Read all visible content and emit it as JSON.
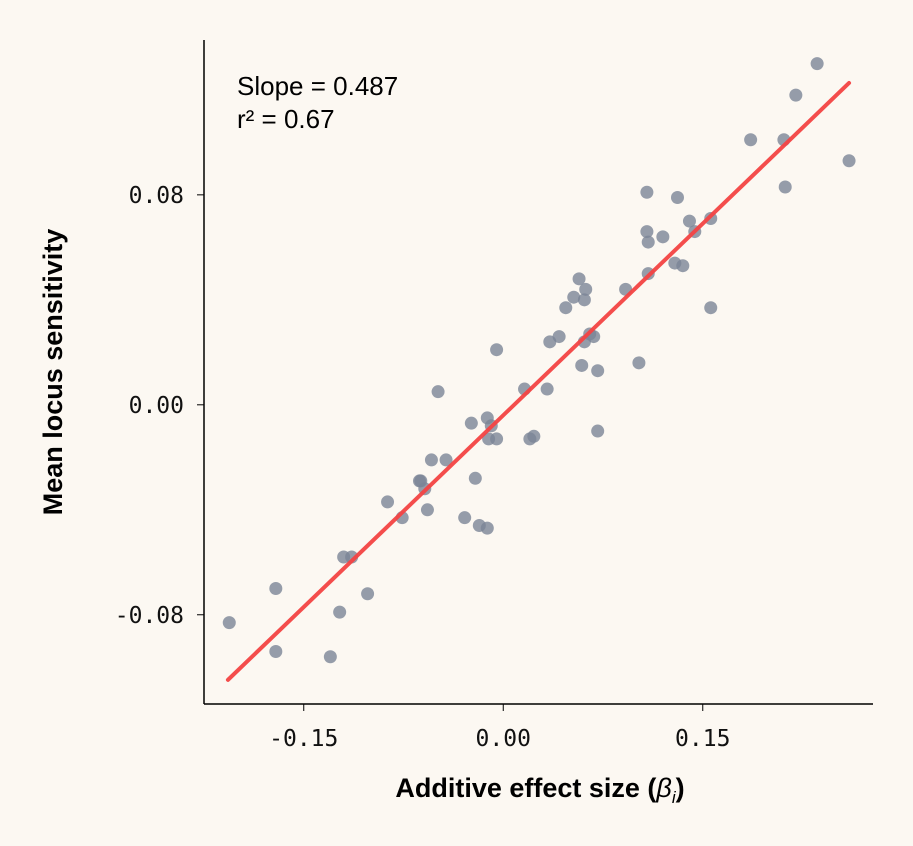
{
  "chart_data": {
    "type": "scatter",
    "xlabel": "Additive effect size (",
    "xlabel_symbol": "β",
    "xlabel_subscript": "i",
    "xlabel_close": ")",
    "ylabel": "Mean locus sensitivity",
    "xlim": [
      -0.225,
      0.278
    ],
    "ylim": [
      -0.114,
      0.139
    ],
    "xticks": [
      -0.15,
      0.0,
      0.15
    ],
    "xtick_labels": [
      "-0.15",
      "0.00",
      "0.15"
    ],
    "yticks": [
      -0.08,
      0.0,
      0.08
    ],
    "ytick_labels": [
      "-0.08",
      "0.00",
      "0.08"
    ],
    "grid": false,
    "annotations": [
      "Slope = 0.487",
      "r² = 0.67"
    ],
    "fit_line": {
      "slope": 0.487,
      "intercept": -0.004,
      "x_range": [
        -0.207,
        0.26
      ],
      "color": "#f44444"
    },
    "point_color": "#7a8596",
    "background": "#fcf8f2",
    "points": [
      [
        -0.206,
        -0.083
      ],
      [
        -0.171,
        -0.07
      ],
      [
        -0.171,
        -0.094
      ],
      [
        -0.13,
        -0.096
      ],
      [
        -0.123,
        -0.079
      ],
      [
        -0.12,
        -0.058
      ],
      [
        -0.114,
        -0.058
      ],
      [
        -0.102,
        -0.072
      ],
      [
        -0.087,
        -0.037
      ],
      [
        -0.076,
        -0.043
      ],
      [
        -0.063,
        -0.029
      ],
      [
        -0.062,
        -0.029
      ],
      [
        -0.059,
        -0.032
      ],
      [
        -0.057,
        -0.04
      ],
      [
        -0.054,
        -0.021
      ],
      [
        -0.043,
        -0.021
      ],
      [
        -0.049,
        0.005
      ],
      [
        -0.029,
        -0.043
      ],
      [
        -0.024,
        -0.007
      ],
      [
        -0.021,
        -0.028
      ],
      [
        -0.018,
        -0.046
      ],
      [
        -0.012,
        -0.047
      ],
      [
        -0.012,
        -0.005
      ],
      [
        -0.011,
        -0.013
      ],
      [
        -0.009,
        -0.008
      ],
      [
        -0.005,
        -0.013
      ],
      [
        -0.005,
        0.021
      ],
      [
        0.016,
        0.006
      ],
      [
        0.02,
        -0.013
      ],
      [
        0.023,
        -0.012
      ],
      [
        0.033,
        0.006
      ],
      [
        0.035,
        0.024
      ],
      [
        0.042,
        0.026
      ],
      [
        0.047,
        0.037
      ],
      [
        0.053,
        0.041
      ],
      [
        0.057,
        0.048
      ],
      [
        0.062,
        0.044
      ],
      [
        0.061,
        0.04
      ],
      [
        0.059,
        0.015
      ],
      [
        0.061,
        0.024
      ],
      [
        0.065,
        0.027
      ],
      [
        0.068,
        0.026
      ],
      [
        0.071,
        0.013
      ],
      [
        0.071,
        -0.01
      ],
      [
        0.092,
        0.044
      ],
      [
        0.102,
        0.016
      ],
      [
        0.109,
        0.05
      ],
      [
        0.108,
        0.081
      ],
      [
        0.108,
        0.066
      ],
      [
        0.109,
        0.062
      ],
      [
        0.12,
        0.064
      ],
      [
        0.129,
        0.054
      ],
      [
        0.131,
        0.079
      ],
      [
        0.135,
        0.053
      ],
      [
        0.14,
        0.07
      ],
      [
        0.144,
        0.066
      ],
      [
        0.156,
        0.071
      ],
      [
        0.156,
        0.037
      ],
      [
        0.186,
        0.101
      ],
      [
        0.211,
        0.101
      ],
      [
        0.212,
        0.083
      ],
      [
        0.22,
        0.118
      ],
      [
        0.236,
        0.13
      ],
      [
        0.26,
        0.093
      ]
    ]
  }
}
